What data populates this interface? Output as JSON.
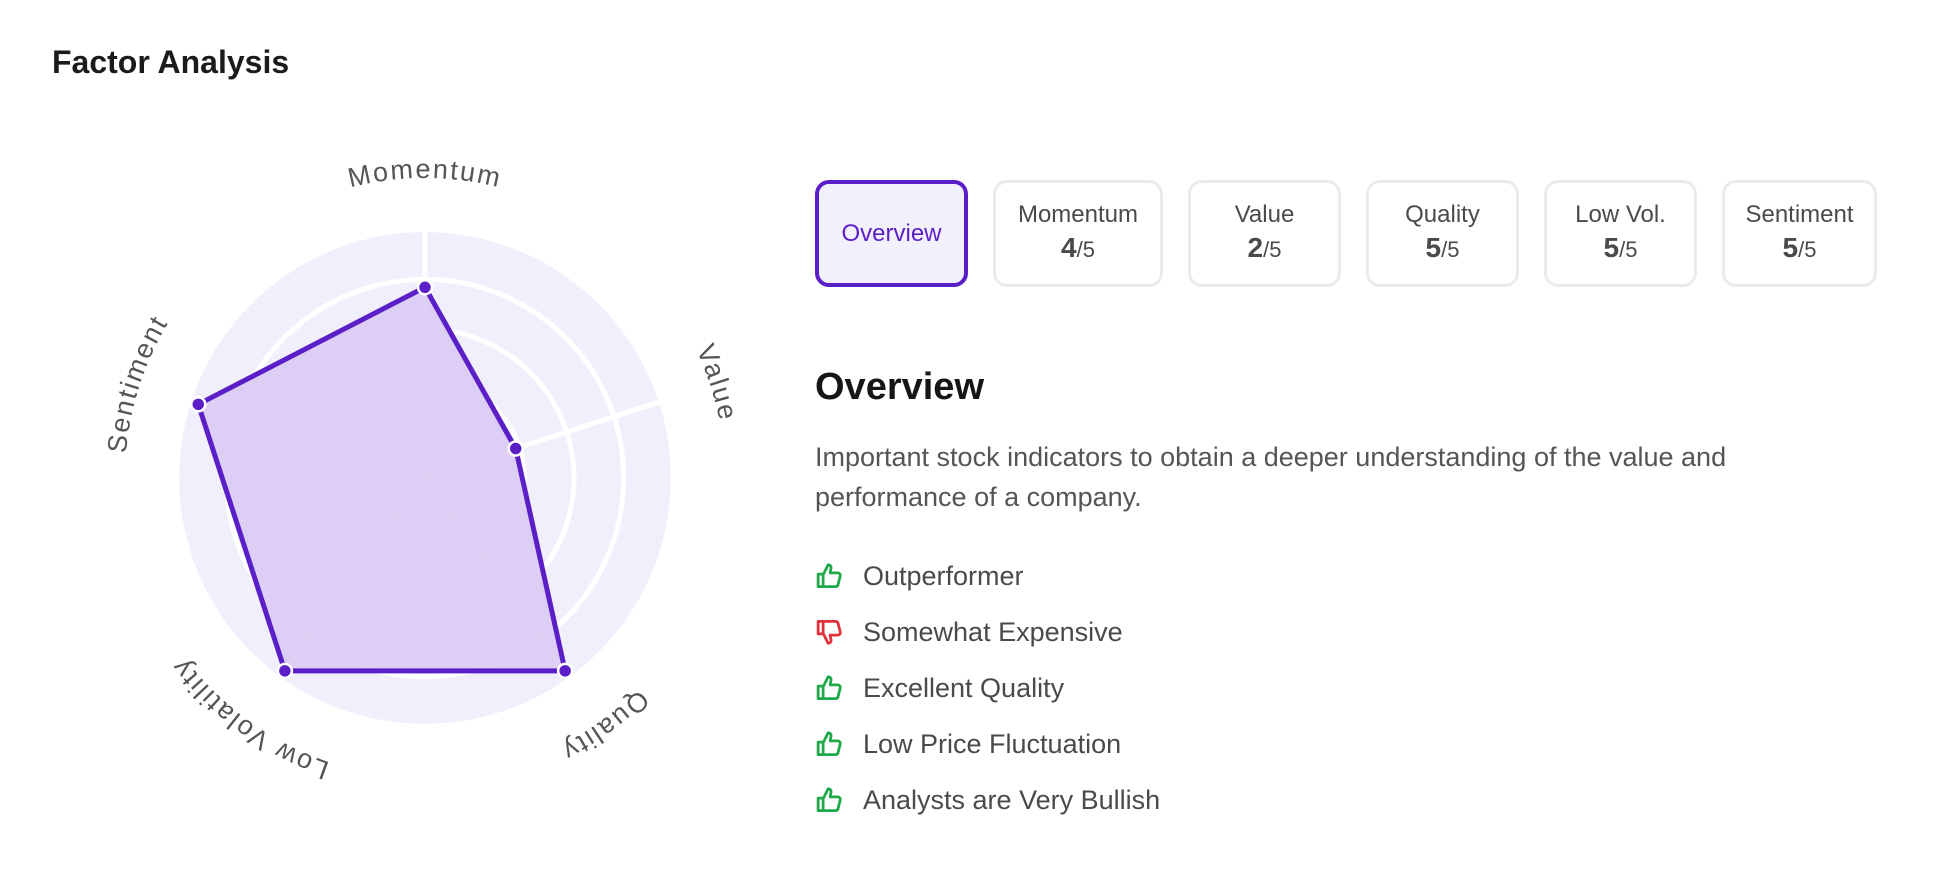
{
  "page": {
    "title": "Factor Analysis"
  },
  "chart_data": {
    "type": "radar",
    "axes": [
      "Momentum",
      "Value",
      "Quality",
      "Low Volatility",
      "Sentiment"
    ],
    "values": [
      4,
      2,
      5,
      5,
      5
    ],
    "range": [
      0,
      5
    ],
    "rings": 5,
    "fill_color": "#d8c8f3",
    "line_color": "#5b1fc7",
    "background_color": "#f1effc"
  },
  "tabs": [
    {
      "label": "Overview",
      "active": true
    },
    {
      "label": "Momentum",
      "score": "4",
      "denominator": "/5"
    },
    {
      "label": "Value",
      "score": "2",
      "denominator": "/5"
    },
    {
      "label": "Quality",
      "score": "5",
      "denominator": "/5"
    },
    {
      "label": "Low Vol.",
      "score": "5",
      "denominator": "/5"
    },
    {
      "label": "Sentiment",
      "score": "5",
      "denominator": "/5"
    }
  ],
  "overview": {
    "title": "Overview",
    "description": "Important stock indicators to obtain a deeper understanding of the value and performance of a company.",
    "points": [
      {
        "text": "Outperformer",
        "sentiment": "positive",
        "icon": "thumbs-up-icon"
      },
      {
        "text": "Somewhat Expensive",
        "sentiment": "negative",
        "icon": "thumbs-down-icon"
      },
      {
        "text": "Excellent Quality",
        "sentiment": "positive",
        "icon": "thumbs-up-icon"
      },
      {
        "text": "Low Price Fluctuation",
        "sentiment": "positive",
        "icon": "thumbs-up-icon"
      },
      {
        "text": "Analysts are Very Bullish",
        "sentiment": "positive",
        "icon": "thumbs-up-icon"
      }
    ]
  },
  "colors": {
    "accent": "#5b1fc7",
    "positive": "#1fa84a",
    "negative": "#e0303a"
  }
}
